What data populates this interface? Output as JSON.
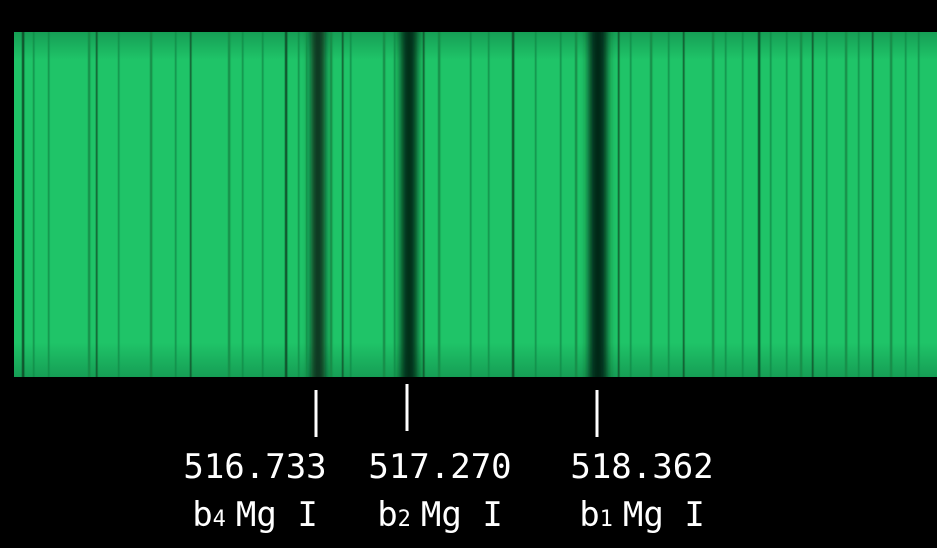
{
  "spectral_lines": [
    {
      "wavelength": "516.733",
      "line": "b",
      "index": "4",
      "element": "Mg I"
    },
    {
      "wavelength": "517.270",
      "line": "b",
      "index": "2",
      "element": "Mg I"
    },
    {
      "wavelength": "518.362",
      "line": "b",
      "index": "1",
      "element": "Mg I"
    }
  ]
}
